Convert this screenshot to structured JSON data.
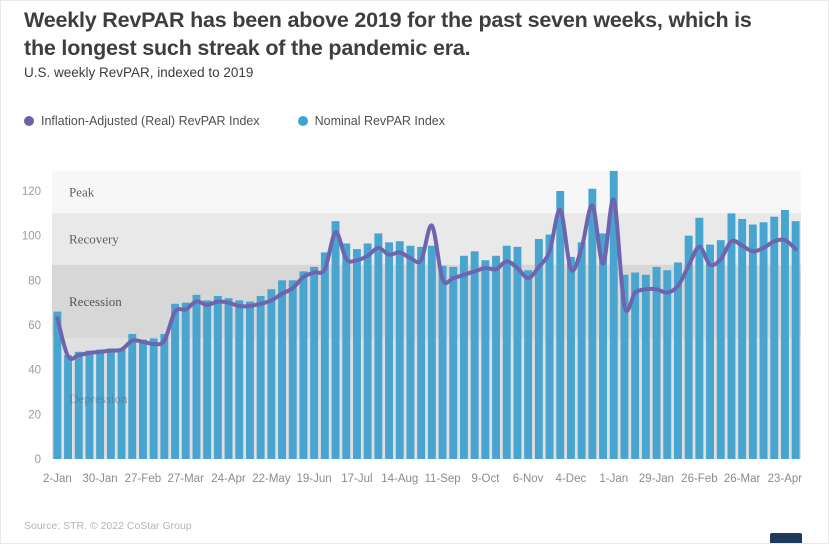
{
  "header": {
    "title": "Weekly RevPAR has been above 2019 for the past seven weeks, which is the longest such streak of the pandemic era.",
    "subtitle": "U.S. weekly RevPAR, indexed to 2019"
  },
  "legend": {
    "items": [
      {
        "label": "Inflation-Adjusted (Real) RevPAR Index",
        "color": "#6a61ad"
      },
      {
        "label": "Nominal RevPAR Index",
        "color": "#3fa2d1"
      }
    ]
  },
  "source": "Source: STR. © 2022 CoStar Group",
  "chart_data": {
    "type": "bar",
    "title": "U.S. weekly RevPAR, indexed to 2019",
    "xlabel": "",
    "ylabel": "",
    "ylim": [
      0,
      129
    ],
    "yticks": [
      0,
      20,
      40,
      60,
      80,
      100,
      120
    ],
    "grid": false,
    "legend_position": "top-left",
    "x_tick_every": 4,
    "x_tick_labels": [
      "2-Jan",
      "30-Jan",
      "27-Feb",
      "27-Mar",
      "24-Apr",
      "22-May",
      "19-Jun",
      "17-Jul",
      "14-Aug",
      "11-Sep",
      "9-Oct",
      "6-Nov",
      "4-Dec",
      "1-Jan",
      "29-Jan",
      "26-Feb",
      "26-Mar",
      "23-Apr"
    ],
    "bands": [
      {
        "label": "Peak",
        "from": 110,
        "to": 129,
        "color": "#f7f7f7",
        "label_color": "#5f5f5f",
        "label_over_bars": false
      },
      {
        "label": "Recovery",
        "from": 87,
        "to": 110,
        "color": "#e9e9e9",
        "label_color": "#5f5f5f",
        "label_over_bars": false
      },
      {
        "label": "Recession",
        "from": 54,
        "to": 87,
        "color": "#d7d7d7",
        "label_color": "#555555",
        "label_over_bars": false
      },
      {
        "label": "Depression",
        "from": 0,
        "to": 54,
        "color": "#e0e0e0",
        "label_color": "#5c6b7c",
        "label_over_bars": true
      }
    ],
    "series": [
      {
        "name": "Nominal RevPAR Index",
        "type": "bar",
        "color": "#47a5cf",
        "values": [
          66,
          46.5,
          48,
          48.5,
          49,
          49.5,
          49,
          56,
          53.5,
          54,
          56,
          69.5,
          70,
          73.5,
          71,
          73,
          72,
          71,
          70.5,
          73,
          76,
          80,
          80,
          84,
          86,
          92.5,
          106.5,
          96.5,
          94,
          96.5,
          101,
          97,
          97.5,
          95.5,
          95,
          95.5,
          86.5,
          86,
          91,
          93,
          89,
          91,
          95.5,
          95,
          84.5,
          98.5,
          100.5,
          120,
          90.5,
          97,
          121,
          101,
          129,
          82.5,
          83.5,
          82.5,
          86,
          84.5,
          88,
          100,
          108,
          96,
          98,
          110,
          107.5,
          105,
          106,
          108.5,
          111.5,
          106.5
        ]
      },
      {
        "name": "Inflation-Adjusted (Real) RevPAR Index",
        "type": "line",
        "color": "#6f64ae",
        "values": [
          63,
          46,
          46.5,
          47.5,
          48,
          48.5,
          49,
          53,
          52.5,
          51.5,
          53,
          66,
          67,
          70.5,
          69,
          70.5,
          70,
          68.5,
          68.5,
          69.5,
          71,
          74,
          76.5,
          81.5,
          83.5,
          85,
          101.5,
          89.5,
          89,
          91,
          94.5,
          91.5,
          92.5,
          90,
          89,
          104.5,
          80.5,
          81,
          82.5,
          84,
          85.5,
          85,
          88.5,
          85.5,
          81,
          86,
          93,
          111.5,
          85,
          94.5,
          113.5,
          87.5,
          116,
          68.5,
          74.5,
          76,
          76,
          74.5,
          77.5,
          86.5,
          95,
          87,
          89.5,
          97.5,
          95.5,
          93,
          94.5,
          97.5,
          98,
          94
        ]
      }
    ]
  }
}
